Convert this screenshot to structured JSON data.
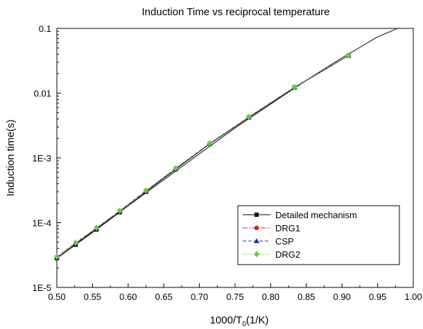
{
  "chart_data": {
    "type": "line",
    "title": "Induction Time vs reciprocal temperature",
    "xlabel_main": "1000/T",
    "xlabel_sub": "0",
    "xlabel_unit": "(1/K)",
    "ylabel": "Induction time(s)",
    "xlim": [
      0.5,
      1.0
    ],
    "ylim": [
      1e-05,
      0.1
    ],
    "yscale": "log",
    "grid": false,
    "legend_position": "bottom-right",
    "x_ticks": [
      "0.50",
      "0.55",
      "0.60",
      "0.65",
      "0.70",
      "0.75",
      "0.80",
      "0.85",
      "0.90",
      "0.95",
      "1.00"
    ],
    "y_ticks": [
      "1E-5",
      "1E-4",
      "1E-3",
      "0.01",
      "0.1"
    ],
    "curve": {
      "x": [
        0.5,
        0.55,
        0.6,
        0.65,
        0.7,
        0.75,
        0.8,
        0.85,
        0.9,
        0.95,
        0.98
      ],
      "y": [
        2.83e-05,
        7.27e-05,
        0.000183,
        0.000458,
        0.00116,
        0.0029,
        0.0068,
        0.0159,
        0.0351,
        0.0741,
        0.102
      ]
    },
    "series": [
      {
        "name": "Detailed mechanism",
        "color": "#000000",
        "marker": "square",
        "dash": "none",
        "x": [
          0.5,
          0.5263,
          0.5556,
          0.5882,
          0.625,
          0.6667,
          0.7143,
          0.7692,
          0.8333,
          0.9091
        ],
        "y": [
          2.83e-05,
          4.57e-05,
          7.84e-05,
          0.000145,
          0.0003,
          0.000666,
          0.00164,
          0.0042,
          0.0122,
          0.038
        ]
      },
      {
        "name": "DRG1",
        "color": "#e0211c",
        "marker": "circle",
        "dash": "7,2,2,2",
        "x": [
          0.5,
          0.5263,
          0.5556,
          0.5882,
          0.625,
          0.6667,
          0.7143,
          0.7692,
          0.8333,
          0.9091
        ],
        "y": [
          2.95e-05,
          4.85e-05,
          8.25e-05,
          0.000152,
          0.000312,
          0.000688,
          0.00167,
          0.00428,
          0.0124,
          0.0382
        ]
      },
      {
        "name": "CSP",
        "color": "#1f2fa8",
        "marker": "triangle",
        "dash": "5,3",
        "x": [
          0.5,
          0.5263,
          0.5556,
          0.5882,
          0.625,
          0.6667,
          0.7143,
          0.7692,
          0.8333,
          0.9091
        ],
        "y": [
          2.97e-05,
          4.88e-05,
          8.28e-05,
          0.000153,
          0.000313,
          0.000689,
          0.00167,
          0.00428,
          0.0124,
          0.0382
        ]
      },
      {
        "name": "DRG2",
        "color": "#5fd13c",
        "marker": "diamond",
        "dash": "2,2",
        "x": [
          0.5,
          0.5263,
          0.5556,
          0.5882,
          0.625,
          0.6667,
          0.7143,
          0.7692,
          0.8333,
          0.9091
        ],
        "y": [
          2.98e-05,
          4.9e-05,
          8.3e-05,
          0.000153,
          0.000313,
          0.00069,
          0.00167,
          0.00429,
          0.0124,
          0.0383
        ]
      }
    ]
  }
}
